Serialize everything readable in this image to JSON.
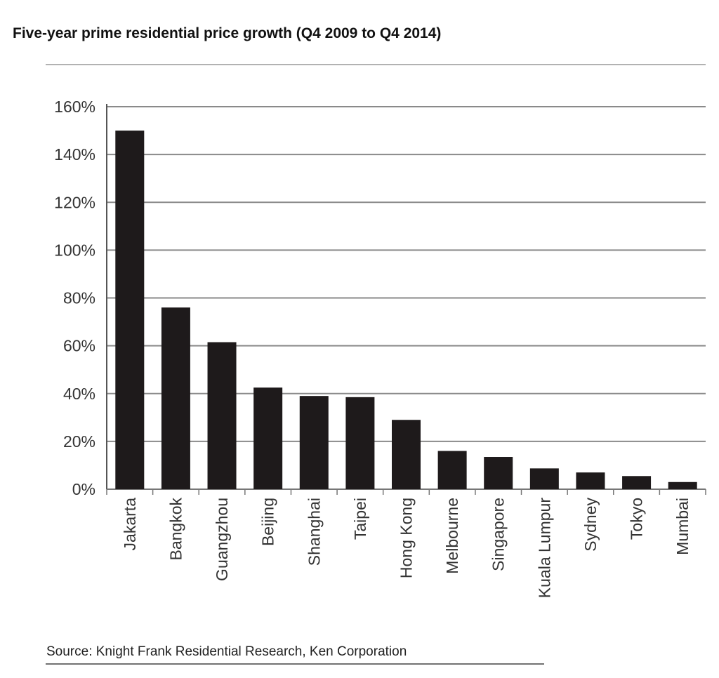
{
  "chart_data": {
    "type": "bar",
    "title": "Five-year prime residential price growth (Q4 2009 to Q4 2014)",
    "source": "Source: Knight Frank Residential Research, Ken Corporation",
    "xlabel": "",
    "ylabel": "",
    "categories": [
      "Jakarta",
      "Bangkok",
      "Guangzhou",
      "Beijing",
      "Shanghai",
      "Taipei",
      "Hong Kong",
      "Melbourne",
      "Singapore",
      "Kuala Lumpur",
      "Sydney",
      "Tokyo",
      "Mumbai"
    ],
    "values": [
      150,
      76,
      61.5,
      42.5,
      39,
      38.5,
      29,
      16,
      13.5,
      8.7,
      7,
      5.5,
      3
    ],
    "ylim": [
      0,
      160
    ],
    "yticks": [
      0,
      20,
      40,
      60,
      80,
      100,
      120,
      140,
      160
    ],
    "ytick_labels": [
      "0%",
      "20%",
      "40%",
      "60%",
      "80%",
      "100%",
      "120%",
      "140%",
      "160%"
    ],
    "grid": true,
    "legend": "none",
    "colors": {
      "bar": "#1e1a1b",
      "grid": "#8a8a8a",
      "text": "#333333"
    }
  }
}
